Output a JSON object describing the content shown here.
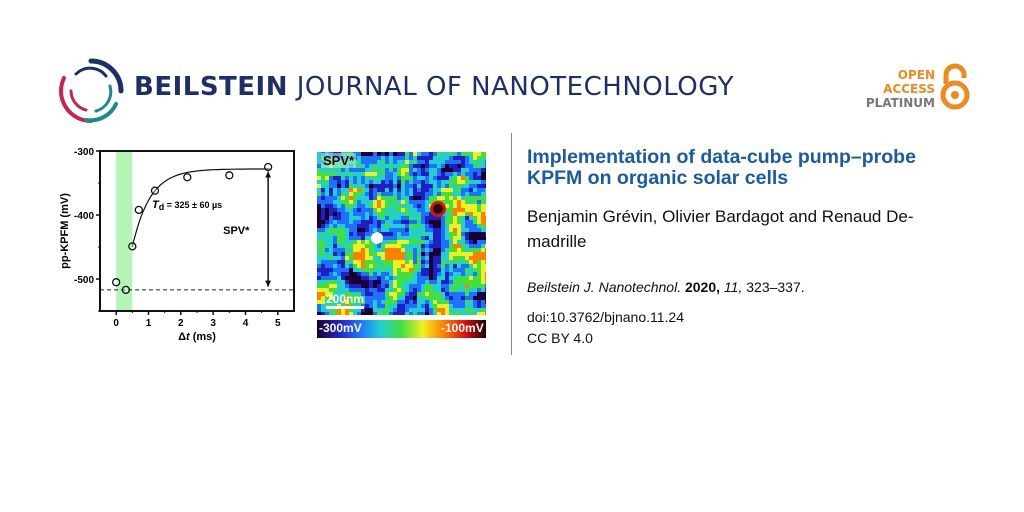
{
  "header": {
    "journal_bold": "BEILSTEIN",
    "journal_light": "JOURNAL OF NANOTECHNOLOGY",
    "badge": {
      "line1": "OPEN",
      "line2": "ACCESS",
      "line3": "PLATINUM"
    },
    "colors": {
      "brand": "#1d2f6b",
      "logo_red": "#c8234f",
      "logo_teal": "#1b8a8c",
      "oa_orange": "#f08a1c",
      "oa_gray": "#777777"
    }
  },
  "article": {
    "title": "Implementation of data-cube pump–probe KPFM on organic solar cells",
    "authors": "Benjamin Grévin, Olivier Bardagot and Renaud De-madrille",
    "citation": {
      "journal": "Beilstein J. Nanotechnol.",
      "year": "2020,",
      "volume": "11,",
      "pages": "323–337."
    },
    "doi": "doi:10.3762/bjnano.11.24",
    "license": "CC BY 4.0",
    "title_color": "#1a5ba6"
  },
  "chart_data": [
    {
      "type": "scatter",
      "xlabel_symbol": "Δ",
      "xlabel_var": "t",
      "xlabel_unit": "(ms)",
      "ylabel": "pp-KPFM  (mV)",
      "xlim": [
        -0.5,
        5.5
      ],
      "ylim": [
        -550,
        -300
      ],
      "xticks": [
        0,
        1,
        2,
        3,
        4,
        5
      ],
      "yticks": [
        -300,
        -400,
        -500
      ],
      "points": [
        {
          "x": 0,
          "y": -505
        },
        {
          "x": 0.3,
          "y": -517
        },
        {
          "x": 0.5,
          "y": -449
        },
        {
          "x": 0.7,
          "y": -392
        },
        {
          "x": 1.2,
          "y": -362
        },
        {
          "x": 2.2,
          "y": -341
        },
        {
          "x": 3.5,
          "y": -338
        },
        {
          "x": 4.7,
          "y": -325
        }
      ],
      "fit_curve_note": "exponential recovery starting at 0.5 ms",
      "pump_band": {
        "x0": 0,
        "x1": 0.5,
        "color": "#b3f5b3"
      },
      "baseline_dashed_y": -517,
      "annotation_tau_symbol": "T",
      "annotation_tau_sub": "d",
      "annotation_tau_value": " = 325 ± 60 µs",
      "annotation_arrow_label": "SPV*",
      "grid": false
    },
    {
      "type": "heatmap",
      "label": "SPV*",
      "scalebar": "200nm",
      "colorbar_min": "-300mV",
      "colorbar_max": "-100mV",
      "colormap": [
        "#1a0030",
        "#2020c0",
        "#2070ff",
        "#20d0d0",
        "#40e040",
        "#f0f020",
        "#ff8000",
        "#e01010",
        "#200000"
      ]
    }
  ]
}
